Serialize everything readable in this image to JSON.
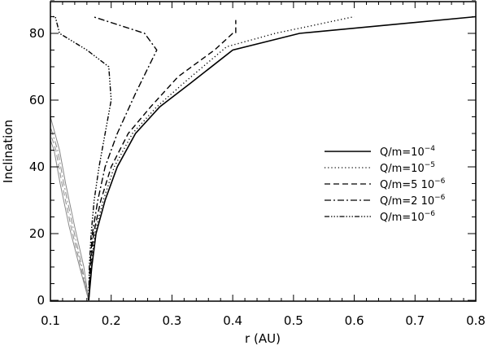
{
  "chart_data": {
    "type": "line",
    "title": "",
    "xlabel": "r (AU)",
    "ylabel": "Inclination",
    "xlim": [
      0.1,
      0.8
    ],
    "ylim": [
      0,
      90
    ],
    "x_ticks": [
      "0.1",
      "0.2",
      "0.3",
      "0.4",
      "0.5",
      "0.6",
      "0.7",
      "0.8"
    ],
    "y_ticks": [
      "0",
      "20",
      "40",
      "60",
      "80"
    ],
    "grid": false,
    "legend_position": "right-middle",
    "series": [
      {
        "name": "Q/m=10^-4",
        "label_base": "Q/m=10",
        "label_exp": "-4",
        "style": "solid",
        "x": [
          0.163,
          0.168,
          0.175,
          0.19,
          0.21,
          0.24,
          0.28,
          0.33,
          0.4,
          0.51,
          0.8
        ],
        "y": [
          0,
          10,
          20,
          30,
          40,
          50,
          58,
          65,
          75,
          80,
          85
        ]
      },
      {
        "name": "Q/m=10^-5",
        "label_base": "Q/m=10",
        "label_exp": "-5",
        "style": "dotted",
        "x": [
          0.163,
          0.167,
          0.173,
          0.187,
          0.205,
          0.235,
          0.275,
          0.325,
          0.39,
          0.47,
          0.6
        ],
        "y": [
          0,
          10,
          20,
          30,
          40,
          50,
          58,
          66,
          76,
          80,
          85
        ]
      },
      {
        "name": "Q/m=5 10^-6",
        "label_base": "Q/m=5  10",
        "label_exp": "-6",
        "style": "dashed",
        "x": [
          0.163,
          0.166,
          0.171,
          0.183,
          0.2,
          0.228,
          0.265,
          0.31,
          0.37,
          0.4,
          0.405,
          0.405
        ],
        "y": [
          0,
          10,
          20,
          30,
          40,
          50,
          58,
          67,
          75,
          80,
          80,
          84
        ]
      },
      {
        "name": "Q/m=2 10^-6",
        "label_base": "Q/m=2  10",
        "label_exp": "-6",
        "style": "dashdot",
        "x": [
          0.163,
          0.165,
          0.169,
          0.178,
          0.19,
          0.21,
          0.24,
          0.275,
          0.255,
          0.17
        ],
        "y": [
          0,
          10,
          20,
          30,
          40,
          50,
          62,
          75,
          80,
          85
        ]
      },
      {
        "name": "Q/m=10^-6",
        "label_base": "Q/m=10",
        "label_exp": "-6",
        "style": "dashdotdotdot",
        "x": [
          0.163,
          0.164,
          0.167,
          0.172,
          0.18,
          0.19,
          0.2,
          0.196,
          0.16,
          0.115,
          0.108,
          0.1
        ],
        "y": [
          0,
          10,
          20,
          30,
          40,
          50,
          60,
          70,
          75,
          80,
          85,
          85
        ]
      }
    ],
    "gray_curves": [
      {
        "style": "solid",
        "x": [
          0.163,
          0.155,
          0.14,
          0.125,
          0.115,
          0.1
        ],
        "y": [
          0,
          10,
          22,
          35,
          45,
          55
        ]
      },
      {
        "style": "dashdot",
        "x": [
          0.163,
          0.152,
          0.137,
          0.122,
          0.112,
          0.1
        ],
        "y": [
          0,
          10,
          22,
          35,
          45,
          52
        ]
      },
      {
        "style": "dashed",
        "x": [
          0.163,
          0.15,
          0.134,
          0.119,
          0.109,
          0.1
        ],
        "y": [
          0,
          10,
          22,
          35,
          45,
          50
        ]
      },
      {
        "style": "solid",
        "x": [
          0.163,
          0.148,
          0.131,
          0.116,
          0.106,
          0.1
        ],
        "y": [
          0,
          10,
          22,
          35,
          45,
          48
        ]
      }
    ]
  }
}
